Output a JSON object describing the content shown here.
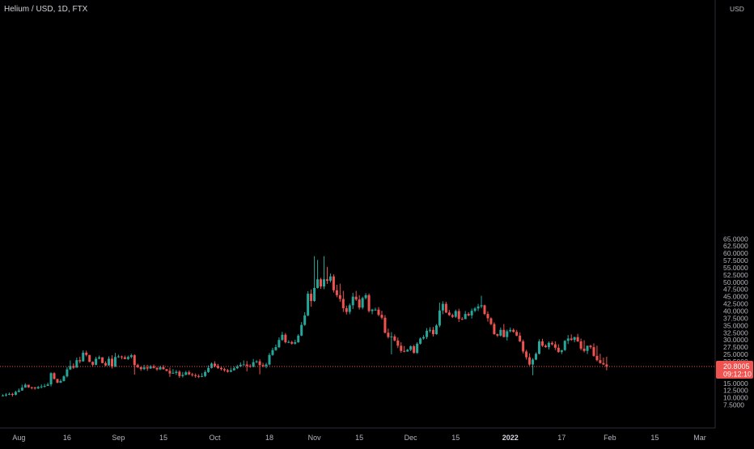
{
  "header": {
    "title": "Helium / USD, 1D, FTX"
  },
  "colors": {
    "up": "#26a69a",
    "down": "#ef5350",
    "background": "#000000",
    "axis_text": "#b2b5be",
    "price_line": "#ef5350"
  },
  "chart_data": {
    "type": "candlestick",
    "title": "Helium / USD, 1D, FTX",
    "currency": "USD",
    "ylim": [
      5.0,
      65.0
    ],
    "y_ticks": [
      "65.0000",
      "62.5000",
      "60.0000",
      "57.5000",
      "55.0000",
      "52.5000",
      "50.0000",
      "47.5000",
      "45.0000",
      "42.5000",
      "40.0000",
      "37.5000",
      "35.0000",
      "32.5000",
      "30.0000",
      "27.5000",
      "25.0000",
      "22.5000",
      "20.0000",
      "17.5000",
      "15.0000",
      "12.5000",
      "10.0000",
      "7.5000"
    ],
    "x_ticks": [
      {
        "label": "Aug",
        "day": 5,
        "bold": false
      },
      {
        "label": "16",
        "day": 20,
        "bold": false
      },
      {
        "label": "Sep",
        "day": 36,
        "bold": false
      },
      {
        "label": "15",
        "day": 50,
        "bold": false
      },
      {
        "label": "Oct",
        "day": 66,
        "bold": false
      },
      {
        "label": "18",
        "day": 83,
        "bold": false
      },
      {
        "label": "Nov",
        "day": 97,
        "bold": false
      },
      {
        "label": "15",
        "day": 111,
        "bold": false
      },
      {
        "label": "Dec",
        "day": 127,
        "bold": false
      },
      {
        "label": "15",
        "day": 141,
        "bold": false
      },
      {
        "label": "2022",
        "day": 158,
        "bold": true
      },
      {
        "label": "17",
        "day": 174,
        "bold": false
      },
      {
        "label": "Feb",
        "day": 189,
        "bold": false
      },
      {
        "label": "15",
        "day": 203,
        "bold": false
      },
      {
        "label": "Mar",
        "day": 217,
        "bold": false
      }
    ],
    "current_price": {
      "value": 20.8005,
      "label": "20.8005",
      "countdown": "09:12:10"
    },
    "closes": [
      10.8,
      11.1,
      11.3,
      11.0,
      12.0,
      12.5,
      13.5,
      14.5,
      13.6,
      13.5,
      13.2,
      13.7,
      13.9,
      14.1,
      14.6,
      18.5,
      16.5,
      15.2,
      15.8,
      17.4,
      19.8,
      21.0,
      20.4,
      23.0,
      22.6,
      25.6,
      24.8,
      22.4,
      21.4,
      23.5,
      24.0,
      22.0,
      21.2,
      23.5,
      20.8,
      24.1,
      24.3,
      24.0,
      23.4,
      24.1,
      24.7,
      21.3,
      20.6,
      19.9,
      20.5,
      20.1,
      20.9,
      20.3,
      19.8,
      20.6,
      19.9,
      19.3,
      18.4,
      18.6,
      19.0,
      17.5,
      17.9,
      18.8,
      18.1,
      17.8,
      17.5,
      17.3,
      17.5,
      18.9,
      20.3,
      21.8,
      21.0,
      20.3,
      19.9,
      19.5,
      19.0,
      19.5,
      20.2,
      20.8,
      21.4,
      21.5,
      21.0,
      20.7,
      22.3,
      22.6,
      21.3,
      20.9,
      21.5,
      24.8,
      26.5,
      27.5,
      30.0,
      31.8,
      29.2,
      29.3,
      28.7,
      29.2,
      31.5,
      35.2,
      38.5,
      46.0,
      43.5,
      48.0,
      51.0,
      48.5,
      51.0,
      50.5,
      52.0,
      47.2,
      45.5,
      44.2,
      41.0,
      39.7,
      42.0,
      45.0,
      44.0,
      41.2,
      44.5,
      45.5,
      40.0,
      40.5,
      40.5,
      38.7,
      37.7,
      32.5,
      31.0,
      31.2,
      29.8,
      28.0,
      26.2,
      26.0,
      26.6,
      27.8,
      25.5,
      28.7,
      30.5,
      31.0,
      33.2,
      33.5,
      32.0,
      35.0,
      40.2,
      42.5,
      39.5,
      38.6,
      38.0,
      40.0,
      37.3,
      37.2,
      39.0,
      38.5,
      40.1,
      40.9,
      41.6,
      42.0,
      39.0,
      37.5,
      35.5,
      32.0,
      31.5,
      33.5,
      31.0,
      33.0,
      33.5,
      32.8,
      31.5,
      29.5,
      26.0,
      24.0,
      21.5,
      23.2,
      25.2,
      29.5,
      28.0,
      27.5,
      29.0,
      28.5,
      27.3,
      25.8,
      26.5,
      29.7,
      30.5,
      30.0,
      31.0,
      29.5,
      27.0,
      26.2,
      28.0,
      27.5,
      24.5,
      23.0,
      22.0,
      21.5,
      20.8005
    ],
    "highs": [
      11.2,
      11.6,
      11.8,
      11.7,
      12.4,
      13.2,
      14.5,
      15.0,
      14.2,
      13.8,
      13.8,
      14.1,
      14.6,
      14.8,
      15.2,
      18.8,
      18.8,
      16.3,
      16.4,
      17.8,
      20.6,
      22.9,
      21.9,
      23.9,
      24.2,
      26.4,
      26.3,
      24.1,
      22.6,
      24.2,
      24.6,
      24.0,
      22.6,
      24.3,
      24.7,
      25.5,
      24.9,
      24.6,
      24.6,
      24.6,
      25.2,
      25.0,
      21.8,
      20.7,
      21.4,
      21.4,
      21.3,
      21.5,
      20.6,
      21.1,
      21.3,
      19.9,
      20.4,
      19.9,
      19.6,
      19.5,
      18.9,
      19.3,
      19.4,
      18.6,
      18.4,
      18.1,
      18.5,
      19.5,
      21.2,
      22.2,
      22.6,
      21.7,
      20.7,
      20.4,
      20.0,
      20.4,
      20.8,
      21.4,
      22.2,
      22.9,
      22.7,
      21.6,
      23.4,
      23.0,
      23.3,
      22.1,
      22.1,
      25.5,
      27.3,
      28.4,
      30.9,
      32.8,
      32.4,
      29.9,
      29.7,
      30.1,
      32.0,
      36.2,
      39.6,
      46.9,
      47.5,
      59.0,
      57.7,
      51.5,
      59.0,
      55.3,
      53.0,
      52.7,
      49.1,
      49.5,
      47.0,
      41.9,
      42.6,
      46.3,
      47.0,
      45.5,
      45.0,
      46.2,
      46.1,
      40.8,
      41.2,
      41.4,
      40.1,
      38.6,
      33.9,
      32.7,
      31.9,
      30.8,
      29.2,
      27.9,
      26.9,
      28.1,
      28.3,
      29.2,
      30.9,
      31.7,
      34.1,
      34.4,
      34.5,
      35.5,
      42.9,
      43.4,
      43.2,
      40.4,
      39.1,
      40.5,
      40.8,
      37.9,
      40.0,
      39.6,
      40.9,
      41.4,
      42.5,
      45.3,
      42.2,
      39.9,
      37.8,
      36.1,
      32.2,
      34.3,
      35.5,
      33.6,
      34.3,
      34.0,
      33.5,
      32.6,
      30.1,
      26.6,
      25.4,
      23.7,
      25.7,
      30.2,
      30.4,
      28.5,
      29.5,
      29.5,
      29.5,
      28.5,
      26.5,
      29.9,
      31.7,
      31.9,
      31.1,
      32.1,
      30.5,
      29.9,
      27.2,
      28.3,
      28.8,
      28.0,
      25.2,
      23.9,
      24.2,
      22.1,
      21.5
    ],
    "lows": [
      10.5,
      10.4,
      10.9,
      10.4,
      10.8,
      11.9,
      12.4,
      13.5,
      13.4,
      12.9,
      12.8,
      13.0,
      13.2,
      13.5,
      14.1,
      13.9,
      16.3,
      15.0,
      15.1,
      15.6,
      17.0,
      19.6,
      20.0,
      20.4,
      21.9,
      22.5,
      24.3,
      22.3,
      20.7,
      21.2,
      23.3,
      21.9,
      20.9,
      21.0,
      20.1,
      20.6,
      23.8,
      23.3,
      23.3,
      23.1,
      23.6,
      18.0,
      20.3,
      19.3,
      19.6,
      19.3,
      20.0,
      20.1,
      19.3,
      19.6,
      19.7,
      19.1,
      17.2,
      18.4,
      17.9,
      16.9,
      17.0,
      17.8,
      17.8,
      17.3,
      16.9,
      16.8,
      17.1,
      17.1,
      18.6,
      20.1,
      20.5,
      20.0,
      19.4,
      19.0,
      18.7,
      18.8,
      19.4,
      19.9,
      20.6,
      21.2,
      19.1,
      20.4,
      20.5,
      22.0,
      18.1,
      20.5,
      20.2,
      21.2,
      24.5,
      26.2,
      27.2,
      29.7,
      28.8,
      28.9,
      28.4,
      28.4,
      29.0,
      31.3,
      34.9,
      38.2,
      41.5,
      43.2,
      47.8,
      47.7,
      47.6,
      49.4,
      49.9,
      46.4,
      44.8,
      43.2,
      39.7,
      38.8,
      38.9,
      40.7,
      43.5,
      40.5,
      40.6,
      44.0,
      39.5,
      38.9,
      40.1,
      38.2,
      37.1,
      32.3,
      30.5,
      25.0,
      29.5,
      27.2,
      25.6,
      25.7,
      25.9,
      26.1,
      25.3,
      25.2,
      28.4,
      30.1,
      30.3,
      32.6,
      31.2,
      31.8,
      34.4,
      38.9,
      39.3,
      38.3,
      37.6,
      37.6,
      36.2,
      36.9,
      37.2,
      38.2,
      37.4,
      39.6,
      40.0,
      41.0,
      38.6,
      36.3,
      35.1,
      31.8,
      31.0,
      31.2,
      30.9,
      29.8,
      32.6,
      32.5,
      31.3,
      29.3,
      25.3,
      23.2,
      21.1,
      17.8,
      23.0,
      25.0,
      27.6,
      27.3,
      26.7,
      28.1,
      26.5,
      25.6,
      25.1,
      26.2,
      28.6,
      29.7,
      29.2,
      29.3,
      26.4,
      25.7,
      25.1,
      26.9,
      24.2,
      22.6,
      21.8,
      21.3,
      19.5
    ]
  }
}
